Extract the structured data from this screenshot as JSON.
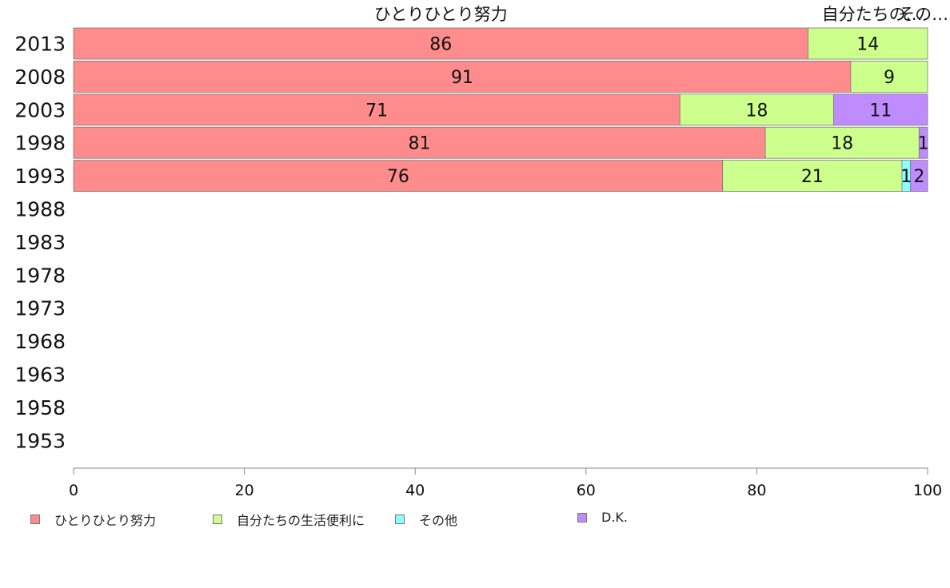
{
  "chart_data": {
    "type": "bar",
    "orientation": "horizontal",
    "stacked": true,
    "categories": [
      "2013",
      "2008",
      "2003",
      "1998",
      "1993",
      "1988",
      "1983",
      "1978",
      "1973",
      "1968",
      "1963",
      "1958",
      "1953"
    ],
    "series": [
      {
        "name": "ひとりひとり努力",
        "color": "#ff8c8c",
        "values": [
          86,
          91,
          71,
          81,
          76,
          null,
          null,
          null,
          null,
          null,
          null,
          null,
          null
        ]
      },
      {
        "name": "自分たちの生活便利に",
        "color": "#ccff8c",
        "values": [
          14,
          9,
          18,
          18,
          21,
          null,
          null,
          null,
          null,
          null,
          null,
          null,
          null
        ]
      },
      {
        "name": "その他",
        "color": "#8cffff",
        "values": [
          0,
          0,
          0,
          0,
          1,
          null,
          null,
          null,
          null,
          null,
          null,
          null,
          null
        ]
      },
      {
        "name": "D.K.",
        "color": "#bf8cff",
        "values": [
          0,
          0,
          11,
          1,
          2,
          null,
          null,
          null,
          null,
          null,
          null,
          null,
          null
        ]
      }
    ],
    "top_labels": [
      {
        "text": "ひとりひとり努力",
        "at": 43
      },
      {
        "text": "自分たちの…",
        "at": 93.5
      },
      {
        "text": "その…",
        "at": 99.5
      }
    ],
    "xlim": [
      0,
      100
    ],
    "xticks": [
      0,
      20,
      40,
      60,
      80,
      100
    ],
    "grid": false,
    "legend_position": "bottom"
  }
}
